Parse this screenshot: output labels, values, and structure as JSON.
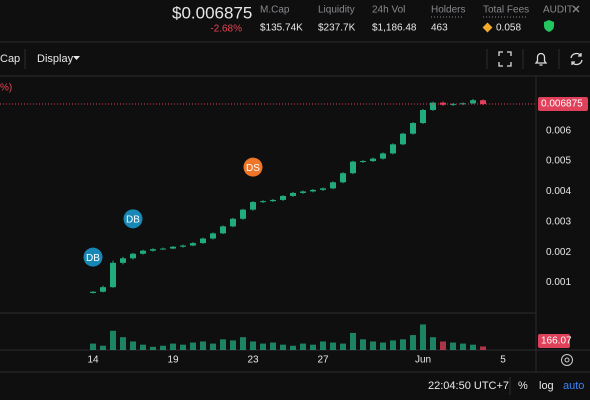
{
  "header": {
    "price": "$0.006875",
    "change": "-2.68%",
    "stats": [
      {
        "label": "M.Cap",
        "value": "$135.74K"
      },
      {
        "label": "Liquidity",
        "value": "$237.7K"
      },
      {
        "label": "24h Vol",
        "value": "$1,186.48"
      },
      {
        "label": "Holders",
        "value": "463"
      },
      {
        "label": "Total Fees",
        "value": "0.058"
      },
      {
        "label": "AUDIT"
      }
    ]
  },
  "toolbar": {
    "cap": "Cap",
    "display": "Display",
    "legend_fragment": "%)"
  },
  "footer": {
    "time": "22:04:50 UTC+7",
    "percent": "%",
    "log": "log",
    "auto": "auto"
  },
  "chart_data": {
    "type": "candlestick",
    "categories": [
      "14",
      null,
      null,
      null,
      null,
      null,
      null,
      null,
      "19",
      null,
      null,
      null,
      null,
      null,
      null,
      null,
      "23",
      null,
      null,
      null,
      null,
      null,
      null,
      "27",
      null,
      null,
      null,
      null,
      null,
      null,
      null,
      null,
      null,
      "Jun",
      null,
      null,
      null,
      null,
      null,
      null,
      null,
      "5"
    ],
    "open": [
      0.00066,
      0.0007,
      0.00085,
      0.00165,
      0.0018,
      0.00195,
      0.00205,
      0.0021,
      0.00212,
      0.00218,
      0.00222,
      0.0023,
      0.00245,
      0.00262,
      0.00285,
      0.0031,
      0.0034,
      0.00365,
      0.00368,
      0.00372,
      0.00385,
      0.00395,
      0.004,
      0.00405,
      0.0041,
      0.0043,
      0.0046,
      0.00498,
      0.005,
      0.00508,
      0.00525,
      0.00555,
      0.0059,
      0.00625,
      0.00668,
      0.00692,
      0.00685,
      0.00688,
      0.0069,
      0.007,
      null,
      null
    ],
    "high": [
      0.00072,
      0.0009,
      0.00172,
      0.00185,
      0.00198,
      0.00208,
      0.00213,
      0.00215,
      0.0022,
      0.00225,
      0.00233,
      0.00248,
      0.00265,
      0.00288,
      0.00313,
      0.00343,
      0.00368,
      0.00371,
      0.00375,
      0.00388,
      0.00398,
      0.00403,
      0.00408,
      0.00413,
      0.00433,
      0.00463,
      0.00501,
      0.00503,
      0.00511,
      0.00528,
      0.00558,
      0.00593,
      0.00628,
      0.00671,
      0.00695,
      0.00696,
      0.00691,
      0.00693,
      0.00704,
      0.00703,
      null,
      null
    ],
    "low": [
      0.00064,
      0.00068,
      0.00083,
      0.0016,
      0.00176,
      0.00192,
      0.00202,
      0.00208,
      0.0021,
      0.00215,
      0.0022,
      0.00228,
      0.00242,
      0.0026,
      0.00282,
      0.00307,
      0.00337,
      0.00362,
      0.00365,
      0.00369,
      0.00382,
      0.00392,
      0.00397,
      0.00402,
      0.00407,
      0.00427,
      0.00457,
      0.00494,
      0.00497,
      0.00505,
      0.00522,
      0.00552,
      0.00587,
      0.00622,
      0.00665,
      0.00682,
      0.00681,
      0.00684,
      0.00687,
      0.00684,
      null,
      null
    ],
    "close": [
      0.0007,
      0.00085,
      0.00165,
      0.0018,
      0.00195,
      0.00205,
      0.0021,
      0.00212,
      0.00218,
      0.00222,
      0.0023,
      0.00245,
      0.00262,
      0.00285,
      0.0031,
      0.0034,
      0.00365,
      0.00368,
      0.00372,
      0.00385,
      0.00395,
      0.004,
      0.00405,
      0.0041,
      0.0043,
      0.0046,
      0.00498,
      0.005,
      0.00508,
      0.00525,
      0.00555,
      0.0059,
      0.00625,
      0.00668,
      0.00692,
      0.00685,
      0.00688,
      0.0069,
      0.007,
      0.006875,
      null,
      null
    ],
    "volume": [
      300,
      200,
      900,
      600,
      400,
      250,
      150,
      200,
      300,
      250,
      350,
      400,
      300,
      500,
      450,
      600,
      400,
      300,
      350,
      250,
      200,
      300,
      250,
      400,
      350,
      300,
      800,
      500,
      400,
      350,
      450,
      500,
      700,
      1200,
      600,
      400,
      350,
      300,
      250,
      166.07,
      null,
      null
    ],
    "ylim": [
      0,
      0.0076
    ],
    "yticks": [
      0.001,
      0.002,
      0.003,
      0.004,
      0.005,
      0.006
    ],
    "y2lim": [
      0,
      1500
    ],
    "up_color": "#22ab7f",
    "down_color": "#e0415a",
    "markers": [
      {
        "label": "DB",
        "candle": 0,
        "color": "#1787b5"
      },
      {
        "label": "DB",
        "candle": 4,
        "color": "#1787b5"
      },
      {
        "label": "DS",
        "candle": 16,
        "color": "#ee7628"
      }
    ],
    "grid": false
  }
}
